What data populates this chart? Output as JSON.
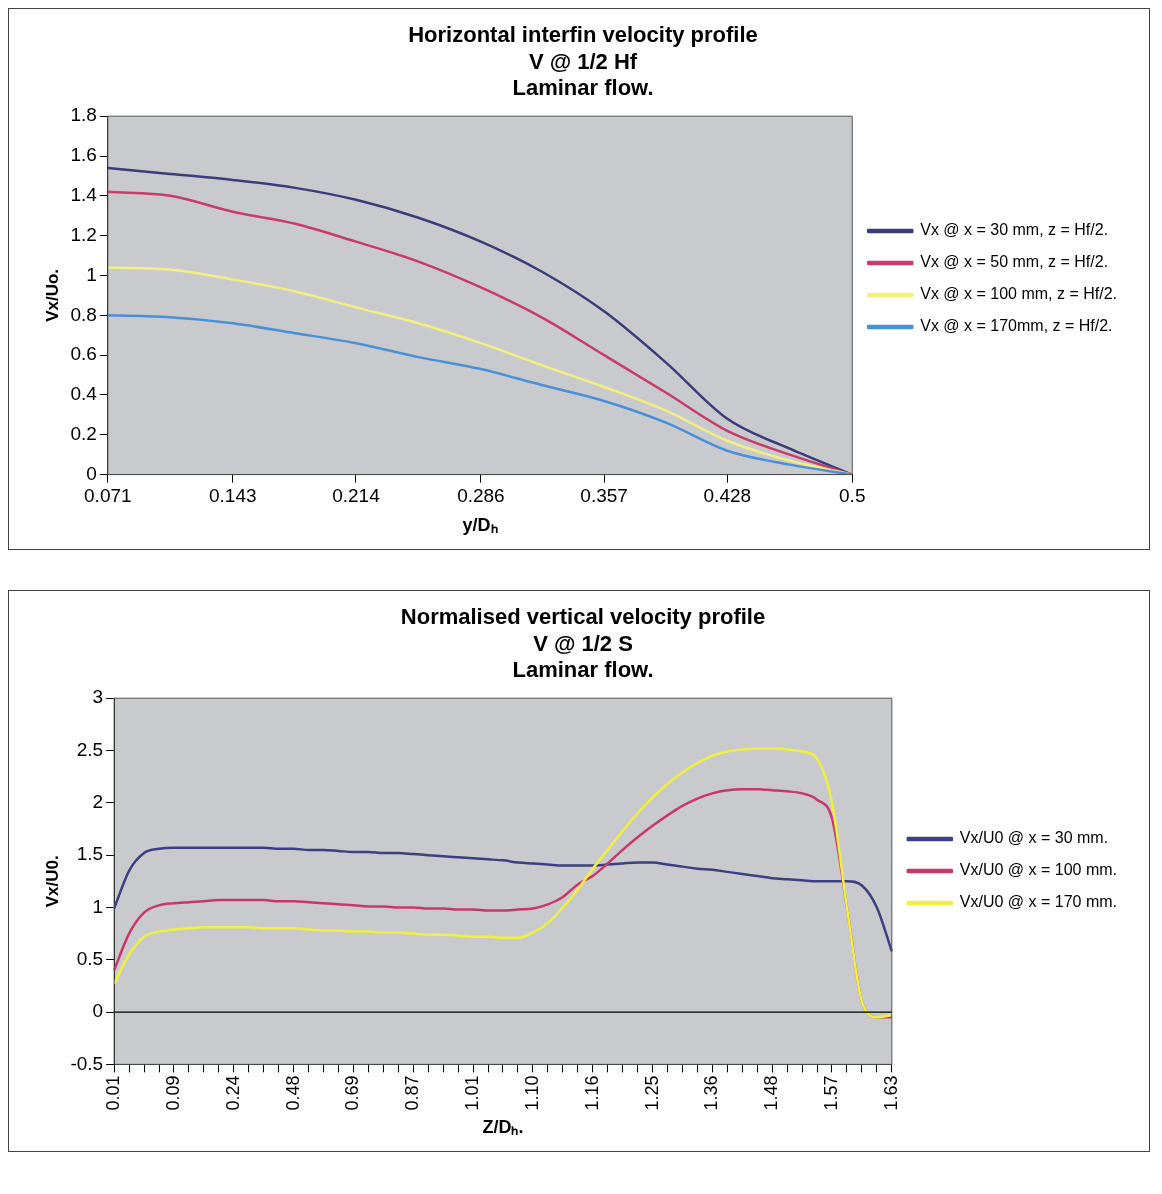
{
  "chart_data": [
    {
      "type": "line",
      "title": "Horizontal interfin velocity profile\nV @ 1/2 Hf\nLaminar flow.",
      "xlabel": "y/Dₕ",
      "ylabel": "Vx/Uo.",
      "x": [
        0.071,
        0.107,
        0.143,
        0.179,
        0.214,
        0.25,
        0.286,
        0.321,
        0.357,
        0.393,
        0.428,
        0.464,
        0.5
      ],
      "xlim": [
        0.071,
        0.5
      ],
      "xticks": [
        0.071,
        0.143,
        0.214,
        0.286,
        0.357,
        0.428,
        0.5
      ],
      "ylim": [
        0,
        1.8
      ],
      "yticks": [
        0,
        0.2,
        0.4,
        0.6,
        0.8,
        1,
        1.2,
        1.4,
        1.6,
        1.8
      ],
      "grid": false,
      "legend": "right",
      "marker": "none",
      "line_style": "solid",
      "series": [
        {
          "name": "Vx @ x = 30 mm, z = Hf/2.",
          "color": "#3b3d7a",
          "values": [
            1.54,
            1.51,
            1.48,
            1.44,
            1.38,
            1.29,
            1.17,
            1.02,
            0.82,
            0.56,
            0.28,
            0.13,
            0
          ]
        },
        {
          "name": "Vx @ x = 50 mm, z = Hf/2.",
          "color": "#c83c6a",
          "values": [
            1.42,
            1.4,
            1.32,
            1.26,
            1.17,
            1.07,
            0.94,
            0.79,
            0.6,
            0.41,
            0.22,
            0.1,
            0
          ]
        },
        {
          "name": "Vx @ x = 100 mm, z = Hf/2.",
          "color": "#f2ee80",
          "values": [
            1.04,
            1.03,
            0.98,
            0.92,
            0.84,
            0.76,
            0.66,
            0.55,
            0.44,
            0.32,
            0.17,
            0.07,
            0
          ]
        },
        {
          "name": "Vx @ x = 170mm, z = Hf/2.",
          "color": "#4a90d8",
          "values": [
            0.8,
            0.79,
            0.76,
            0.71,
            0.66,
            0.59,
            0.53,
            0.45,
            0.37,
            0.26,
            0.12,
            0.05,
            0
          ]
        }
      ]
    },
    {
      "type": "line",
      "title": "Normalised vertical velocity profile\nV @ 1/2 S\nLaminar flow.",
      "xlabel": "Z/Dₕ.",
      "ylabel": "Vx/U0.",
      "categories": [
        "0.01",
        null,
        null,
        null,
        "0.09",
        null,
        null,
        null,
        "0.24",
        null,
        null,
        null,
        "0.48",
        null,
        null,
        null,
        "0.69",
        null,
        null,
        null,
        "0.87",
        null,
        null,
        null,
        "1.01",
        null,
        null,
        null,
        "1.10",
        null,
        null,
        null,
        "1.16",
        null,
        null,
        null,
        "1.25",
        null,
        null,
        null,
        "1.36",
        null,
        null,
        null,
        "1.48",
        null,
        null,
        null,
        "1.57",
        null,
        null,
        null,
        "1.63"
      ],
      "ylim": [
        -0.5,
        3
      ],
      "yticks": [
        -0.5,
        0,
        0.5,
        1,
        1.5,
        2,
        2.5,
        3
      ],
      "grid": false,
      "legend": "right",
      "marker": "none",
      "line_style": "solid",
      "ref_lines": [
        {
          "axis": "y",
          "value": 0,
          "color": "#000000"
        }
      ],
      "series": [
        {
          "name": "Vx/U0 @ x = 30 mm.",
          "color": "#3c3f80",
          "values": [
            0.99,
            1.35,
            1.52,
            1.56,
            1.57,
            1.57,
            1.57,
            1.57,
            1.57,
            1.57,
            1.57,
            1.56,
            1.56,
            1.55,
            1.55,
            1.54,
            1.53,
            1.53,
            1.52,
            1.52,
            1.51,
            1.5,
            1.49,
            1.48,
            1.47,
            1.46,
            1.45,
            1.43,
            1.42,
            1.41,
            1.4,
            1.4,
            1.4,
            1.41,
            1.42,
            1.43,
            1.43,
            1.41,
            1.39,
            1.37,
            1.36,
            1.34,
            1.32,
            1.3,
            1.28,
            1.27,
            1.26,
            1.25,
            1.25,
            1.25,
            1.21,
            1.0,
            0.58
          ]
        },
        {
          "name": "Vx/U0 @ x = 100 mm.",
          "color": "#c83868",
          "values": [
            0.4,
            0.75,
            0.95,
            1.02,
            1.04,
            1.05,
            1.06,
            1.07,
            1.07,
            1.07,
            1.07,
            1.06,
            1.06,
            1.05,
            1.04,
            1.03,
            1.02,
            1.01,
            1.01,
            1.0,
            1.0,
            0.99,
            0.99,
            0.98,
            0.98,
            0.97,
            0.97,
            0.98,
            0.99,
            1.03,
            1.1,
            1.22,
            1.3,
            1.42,
            1.55,
            1.67,
            1.78,
            1.88,
            1.97,
            2.04,
            2.09,
            2.12,
            2.13,
            2.13,
            2.12,
            2.11,
            2.09,
            2.03,
            1.85,
            1.0,
            0.1,
            -0.05,
            -0.05
          ]
        },
        {
          "name": "Vx/U0 @ x = 170 mm.",
          "color": "#f0f040",
          "values": [
            0.27,
            0.55,
            0.72,
            0.77,
            0.79,
            0.8,
            0.81,
            0.81,
            0.81,
            0.81,
            0.8,
            0.8,
            0.8,
            0.79,
            0.78,
            0.78,
            0.77,
            0.77,
            0.76,
            0.76,
            0.75,
            0.74,
            0.74,
            0.73,
            0.72,
            0.72,
            0.71,
            0.71,
            0.76,
            0.85,
            1.0,
            1.17,
            1.37,
            1.55,
            1.73,
            1.9,
            2.05,
            2.18,
            2.29,
            2.38,
            2.45,
            2.49,
            2.51,
            2.52,
            2.52,
            2.51,
            2.49,
            2.42,
            2.0,
            1.0,
            0.1,
            -0.05,
            -0.03
          ]
        }
      ]
    }
  ]
}
